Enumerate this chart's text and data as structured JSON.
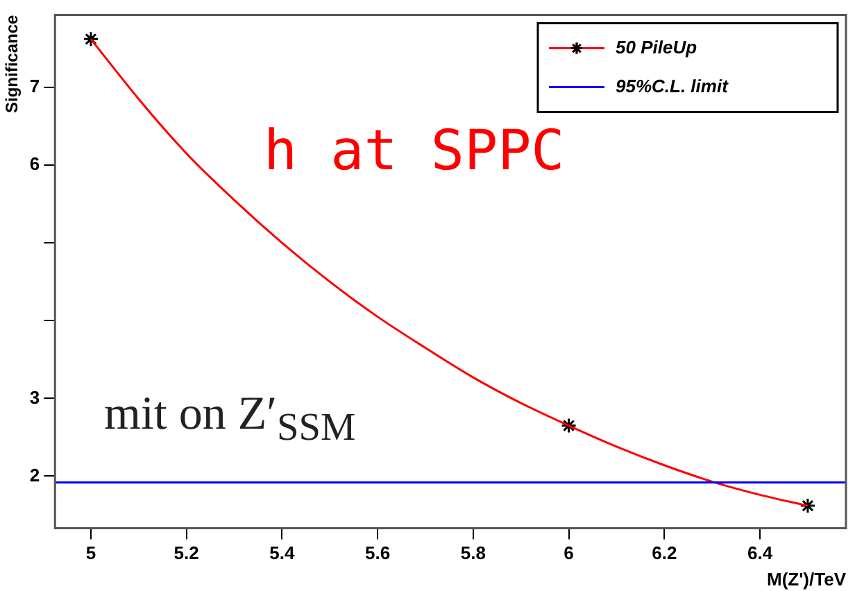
{
  "chart_data": {
    "type": "line",
    "xlabel": "M(Z')/TeV",
    "ylabel": "Significance",
    "xlim": [
      4.925,
      6.58
    ],
    "ylim": [
      1.33,
      7.93
    ],
    "xticks": [
      5,
      5.2,
      5.4,
      5.6,
      5.8,
      6,
      6.2,
      6.4
    ],
    "yticks": [
      2,
      3,
      {
        "value": 4,
        "label": null
      },
      {
        "value": 5,
        "label": null
      },
      6,
      7
    ],
    "series": [
      {
        "name": "50 PileUp",
        "type": "line",
        "color": "#ff0000",
        "x": [
          5,
          5.1,
          5.2,
          5.3,
          5.4,
          5.5,
          5.6,
          5.7,
          5.8,
          5.9,
          6,
          6.1,
          6.2,
          6.3,
          6.4,
          6.5
        ],
        "values": [
          7.62,
          6.85,
          6.15,
          5.55,
          5.0,
          4.5,
          4.05,
          3.65,
          3.27,
          2.94,
          2.65,
          2.38,
          2.14,
          1.93,
          1.76,
          1.62
        ]
      },
      {
        "type": "scatter",
        "color": "#000000",
        "marker": "cross",
        "x": [
          5,
          6,
          6.5
        ],
        "values": [
          7.62,
          2.65,
          1.62
        ]
      }
    ],
    "ref_lines": [
      {
        "axis": "y",
        "value": 1.92,
        "label": "95%C.L. limit",
        "color": "#0000ff"
      }
    ],
    "legend": "top right",
    "grid": false,
    "annotations": [
      "h at SPPC",
      "mit on Z′$_{SSM}$"
    ]
  }
}
